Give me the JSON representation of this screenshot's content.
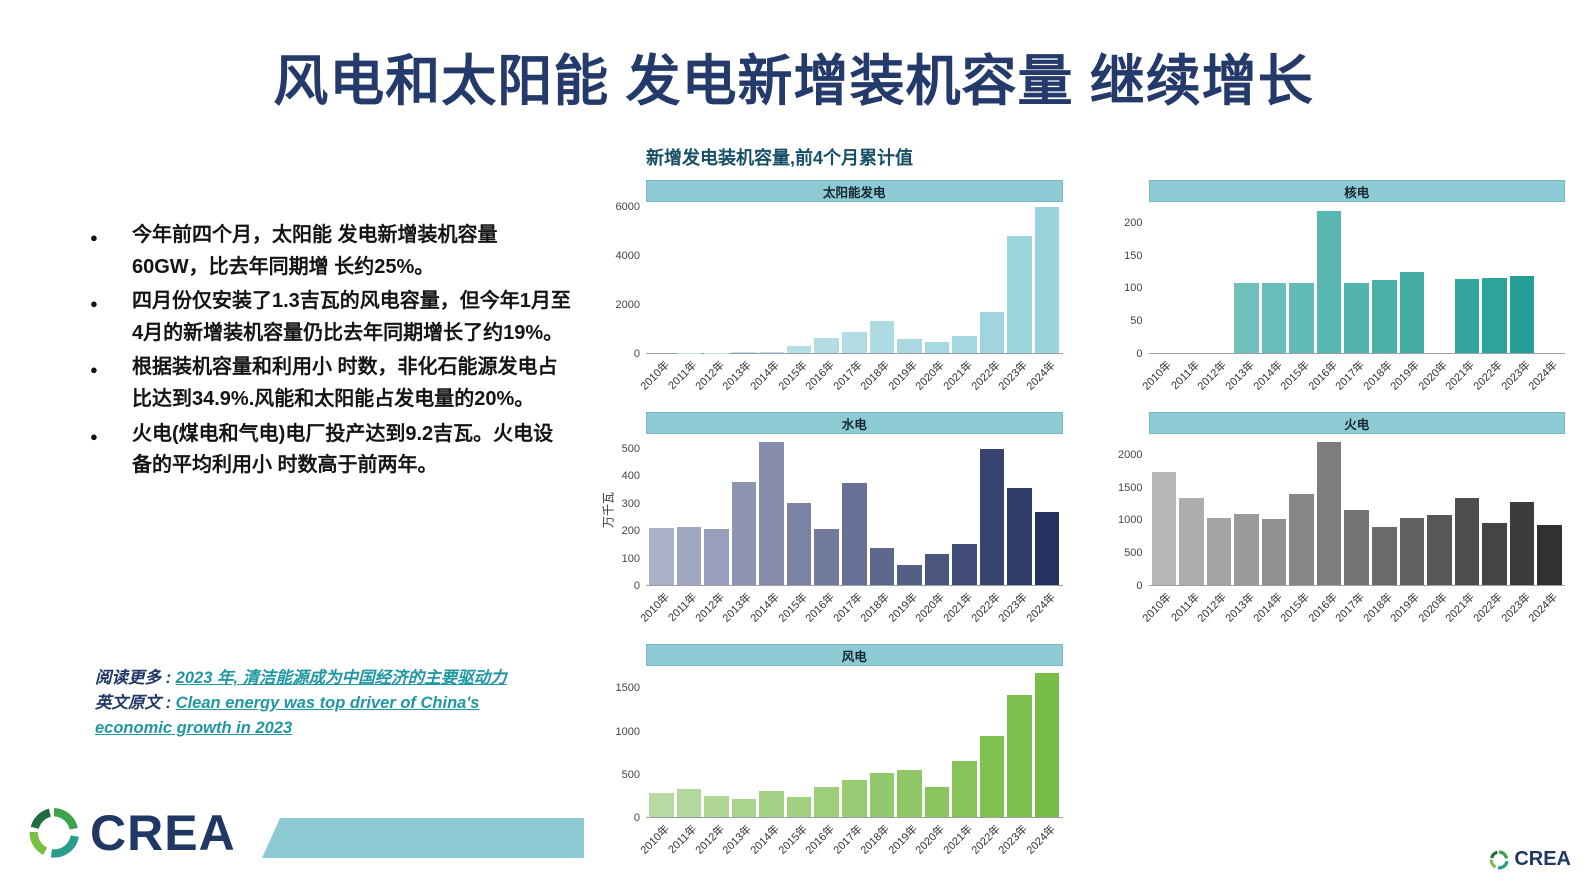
{
  "title": "风电和太阳能 发电新增装机容量 继续增长",
  "bullets": [
    "今年前四个月，太阳能 发电新增装机容量60GW，比去年同期增 长约25%。",
    "四月份仅安装了1.3吉瓦的风电容量，但今年1月至4月的新增装机容量仍比去年同期增长了约19%。",
    "根据装机容量和利用小 时数，非化石能源发电占比达到34.9%.风能和太阳能占发电量的20%。",
    "火电(煤电和气电)电厂投产达到9.2吉瓦。火电设备的平均利用小 时数高于前两年。"
  ],
  "links": {
    "read_more_label": "阅读更多 : ",
    "read_more_text": "2023 年, 清洁能源成为中国经济的主要驱动力",
    "english_label": "英文原文 : ",
    "english_text": "Clean energy was top driver of China's economic growth in 2023"
  },
  "charts": {
    "subtitle": "新增发电装机容量,前4个月累计值"
  },
  "logo": {
    "text": "CREA"
  },
  "colors": {
    "accent_teal": "#8ccad4",
    "title_navy": "#243a6b",
    "link_teal": "#2097a3"
  },
  "chart_data": [
    {
      "id": "solar",
      "type": "bar",
      "title": "太阳能发电",
      "categories": [
        "2010年",
        "2011年",
        "2012年",
        "2013年",
        "2014年",
        "2015年",
        "2016年",
        "2017年",
        "2018年",
        "2019年",
        "2020年",
        "2021年",
        "2022年",
        "2023年",
        "2024年"
      ],
      "values": [
        0,
        8,
        20,
        60,
        25,
        290,
        620,
        880,
        1300,
        560,
        460,
        700,
        1700,
        4800,
        6000
      ],
      "yticks": [
        0,
        2000,
        4000,
        6000
      ],
      "ylim": [
        0,
        6200
      ],
      "color_start": "#c7e4e9",
      "color_end": "#9bd3dc"
    },
    {
      "id": "nuclear",
      "type": "bar",
      "title": "核电",
      "categories": [
        "2010年",
        "2011年",
        "2012年",
        "2013年",
        "2014年",
        "2015年",
        "2016年",
        "2017年",
        "2018年",
        "2019年",
        "2020年",
        "2021年",
        "2022年",
        "2023年",
        "2024年"
      ],
      "values": [
        0,
        0,
        0,
        108,
        108,
        108,
        218,
        108,
        112,
        125,
        0,
        114,
        116,
        119,
        0
      ],
      "yticks": [
        0,
        50,
        100,
        150,
        200
      ],
      "ylim": [
        0,
        232
      ],
      "color_start": "#86cbc7",
      "color_end": "#1d9c94"
    },
    {
      "id": "hydro",
      "type": "bar",
      "title": "水电",
      "ylabel": "万千瓦",
      "categories": [
        "2010年",
        "2011年",
        "2012年",
        "2013年",
        "2014年",
        "2015年",
        "2016年",
        "2017年",
        "2018年",
        "2019年",
        "2020年",
        "2021年",
        "2022年",
        "2023年",
        "2024年"
      ],
      "values": [
        210,
        213,
        205,
        380,
        525,
        300,
        205,
        375,
        135,
        73,
        113,
        150,
        500,
        355,
        270
      ],
      "yticks": [
        0,
        100,
        200,
        300,
        400,
        500
      ],
      "ylim": [
        0,
        555
      ],
      "color_start": "#abb0ca",
      "color_end": "#253260"
    },
    {
      "id": "thermal",
      "type": "bar",
      "title": "火电",
      "categories": [
        "2010年",
        "2011年",
        "2012年",
        "2013年",
        "2014年",
        "2015年",
        "2016年",
        "2017年",
        "2018年",
        "2019年",
        "2020年",
        "2021年",
        "2022年",
        "2023年",
        "2024年"
      ],
      "values": [
        1730,
        1340,
        1030,
        1090,
        1010,
        1400,
        2200,
        1160,
        890,
        1030,
        1070,
        1330,
        950,
        1270,
        920
      ],
      "yticks": [
        0,
        500,
        1000,
        1500,
        2000
      ],
      "ylim": [
        0,
        2320
      ],
      "color_start": "#b6b6b6",
      "color_end": "#313131"
    },
    {
      "id": "wind",
      "type": "bar",
      "title": "风电",
      "categories": [
        "2010年",
        "2011年",
        "2012年",
        "2013年",
        "2014年",
        "2015年",
        "2016年",
        "2017年",
        "2018年",
        "2019年",
        "2020年",
        "2021年",
        "2022年",
        "2023年",
        "2024年"
      ],
      "values": [
        280,
        330,
        240,
        215,
        300,
        230,
        350,
        430,
        510,
        550,
        350,
        650,
        950,
        1420,
        1680
      ],
      "yticks": [
        0,
        500,
        1000,
        1500
      ],
      "ylim": [
        0,
        1760
      ],
      "color_start": "#b8daa2",
      "color_end": "#78bd45"
    }
  ]
}
